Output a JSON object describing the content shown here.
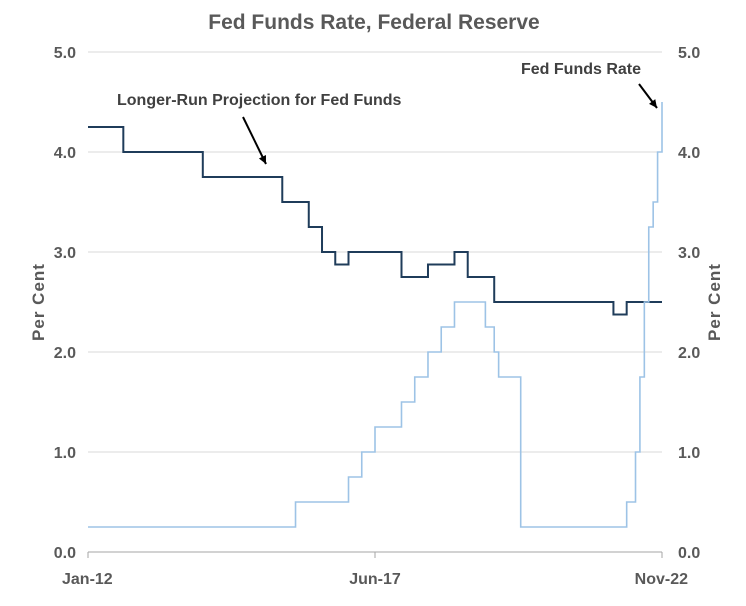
{
  "chart_data": {
    "type": "line",
    "title": "Fed Funds Rate, Federal Reserve",
    "ylabel_left": "Per  Cent",
    "ylabel_right": "Per  Cent",
    "ylim": [
      0,
      5
    ],
    "y_ticks": [
      "0.0",
      "1.0",
      "2.0",
      "3.0",
      "4.0",
      "5.0"
    ],
    "x_ticks": [
      "Jan-12",
      "Jun-17",
      "Nov-22"
    ],
    "x_range": [
      "2012-01",
      "2022-11"
    ],
    "grid": true,
    "colors": {
      "projection": "#1f3c5a",
      "fed_funds": "#9dc3e6",
      "grid": "#d9d9d9",
      "text": "#595959"
    },
    "annotations": [
      {
        "text": "Longer-Run Projection for Fed Funds",
        "series": "projection"
      },
      {
        "text": "Fed Funds Rate",
        "series": "fed_funds"
      }
    ],
    "series": [
      {
        "key": "projection",
        "name": "Longer-Run Projection for Fed Funds",
        "step": true,
        "points": [
          [
            "2012-01",
            4.25
          ],
          [
            "2012-09",
            4.0
          ],
          [
            "2014-03",
            3.75
          ],
          [
            "2015-09",
            3.5
          ],
          [
            "2016-03",
            3.25
          ],
          [
            "2016-06",
            3.0
          ],
          [
            "2016-09",
            2.875
          ],
          [
            "2016-12",
            3.0
          ],
          [
            "2017-06",
            3.0
          ],
          [
            "2017-12",
            2.75
          ],
          [
            "2018-06",
            2.875
          ],
          [
            "2018-12",
            3.0
          ],
          [
            "2019-03",
            2.75
          ],
          [
            "2019-09",
            2.5
          ],
          [
            "2021-12",
            2.375
          ],
          [
            "2022-03",
            2.5
          ],
          [
            "2022-11",
            2.5
          ]
        ]
      },
      {
        "key": "fed_funds",
        "name": "Fed Funds Rate",
        "step": true,
        "points": [
          [
            "2012-01",
            0.25
          ],
          [
            "2015-12",
            0.5
          ],
          [
            "2016-12",
            0.75
          ],
          [
            "2017-03",
            1.0
          ],
          [
            "2017-06",
            1.25
          ],
          [
            "2017-12",
            1.5
          ],
          [
            "2018-03",
            1.75
          ],
          [
            "2018-06",
            2.0
          ],
          [
            "2018-09",
            2.25
          ],
          [
            "2018-12",
            2.5
          ],
          [
            "2019-07",
            2.25
          ],
          [
            "2019-09",
            2.0
          ],
          [
            "2019-10",
            1.75
          ],
          [
            "2020-03",
            0.25
          ],
          [
            "2022-03",
            0.5
          ],
          [
            "2022-05",
            1.0
          ],
          [
            "2022-06",
            1.75
          ],
          [
            "2022-07",
            2.5
          ],
          [
            "2022-08",
            3.25
          ],
          [
            "2022-09",
            3.5
          ],
          [
            "2022-10",
            4.0
          ],
          [
            "2022-11",
            4.5
          ]
        ]
      }
    ]
  }
}
